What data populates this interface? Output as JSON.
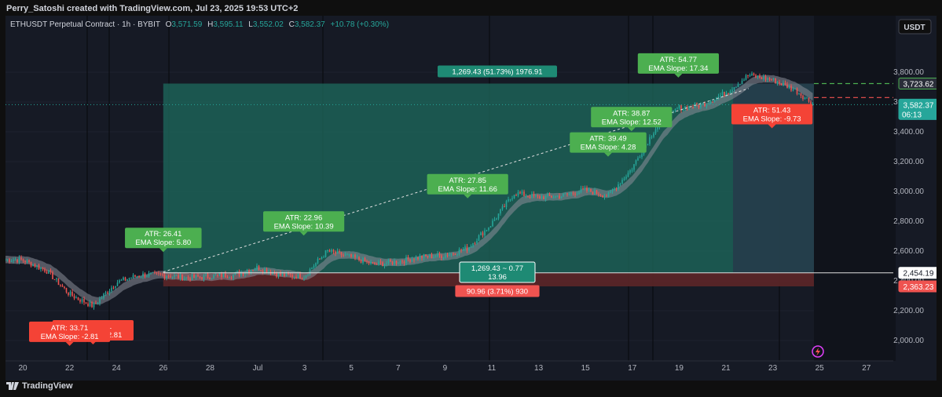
{
  "header": {
    "text": "Perry_Satoshi created with TradingView.com, Jul 23, 2025 19:53 UTC+2"
  },
  "symbol_line": {
    "symbol": "ETHUSDT Perpetual Contract · 1h · BYBIT",
    "o_label": "O",
    "o": "3,571.59",
    "h_label": "H",
    "h": "3,595.11",
    "l_label": "L",
    "l": "3,552.02",
    "c_label": "C",
    "c": "3,582.37",
    "change": "+10.78 (+0.30%)"
  },
  "currency_button": "USDT",
  "footer": {
    "brand": "TradingView"
  },
  "colors": {
    "up": "#26a69a",
    "down": "#ef5350",
    "green_label": "#4caf50",
    "red_label": "#f44336",
    "teal_box": "#1e6b5e",
    "red_box": "#5c2628",
    "bg": "#161a25"
  },
  "chart_data": {
    "type": "candlestick",
    "title": "ETHUSDT Perpetual Contract · 1h · BYBIT",
    "y_ticks": [
      "3,800.00",
      "3,600.00",
      "3,400.00",
      "3,200.00",
      "3,000.00",
      "2,800.00",
      "2,600.00",
      "2,400.00",
      "2,200.00",
      "2,000.00"
    ],
    "y_tick_values": [
      3800,
      3600,
      3400,
      3200,
      3000,
      2800,
      2600,
      2400,
      2200,
      2000
    ],
    "x_ticks": [
      "20",
      "22",
      "24",
      "26",
      "28",
      "Jul",
      "3",
      "5",
      "7",
      "9",
      "11",
      "13",
      "15",
      "17",
      "19",
      "21",
      "23",
      "25",
      "27"
    ],
    "price_badges": [
      {
        "text": "3,723.62",
        "value": 3723.62,
        "style": "green"
      },
      {
        "text": "3,582.37",
        "sub": "06:13",
        "value": 3582.37,
        "style": "teal"
      },
      {
        "text": "2,454.19",
        "value": 2454.19,
        "style": "white"
      },
      {
        "text": "2,363.23",
        "value": 2363.23,
        "style": "red"
      }
    ],
    "position": {
      "entry": 2454.19,
      "target": 3723.62,
      "stop": 2363.23,
      "target_label": "1,269.43 (51.73%) 1976.91",
      "stop_label": "90.96 (3.71%) 930",
      "center_label_1": "1,269.43 ~ 0.77",
      "center_label_2": "13.96"
    },
    "price_path": [
      [
        "Jun 19",
        2545
      ],
      [
        "Jun 20",
        2540
      ],
      [
        "Jun 21",
        2470
      ],
      [
        "Jun 22",
        2310
      ],
      [
        "Jun 23",
        2230
      ],
      [
        "Jun 24",
        2390
      ],
      [
        "Jun 25",
        2440
      ],
      [
        "Jun 26",
        2440
      ],
      [
        "Jun 27",
        2420
      ],
      [
        "Jun 28",
        2430
      ],
      [
        "Jun 29",
        2440
      ],
      [
        "Jun 30",
        2490
      ],
      [
        "Jul 1",
        2440
      ],
      [
        "Jul 2",
        2430
      ],
      [
        "Jul 3",
        2600
      ],
      [
        "Jul 4",
        2560
      ],
      [
        "Jul 5",
        2510
      ],
      [
        "Jul 6",
        2530
      ],
      [
        "Jul 7",
        2560
      ],
      [
        "Jul 8",
        2570
      ],
      [
        "Jul 9",
        2620
      ],
      [
        "Jul 10",
        2780
      ],
      [
        "Jul 11",
        2990
      ],
      [
        "Jul 12",
        2960
      ],
      [
        "Jul 13",
        2970
      ],
      [
        "Jul 14",
        3010
      ],
      [
        "Jul 15",
        2970
      ],
      [
        "Jul 16",
        3150
      ],
      [
        "Jul 17",
        3420
      ],
      [
        "Jul 18",
        3560
      ],
      [
        "Jul 19",
        3580
      ],
      [
        "Jul 20",
        3660
      ],
      [
        "Jul 21",
        3780
      ],
      [
        "Jul 22",
        3750
      ],
      [
        "Jul 23",
        3680
      ],
      [
        "Jul 23 19:00",
        3582.37
      ]
    ],
    "annotations": [
      {
        "line1": "ATR: 33.71",
        "line2": "EMA Slope: -2.81",
        "style": "red",
        "date": "Jun 23",
        "price": 2000,
        "pointer": "down"
      },
      {
        "line1": "ATR: 33.71",
        "line2": "EMA Slope: -2.81",
        "style": "red",
        "date": "Jun 22",
        "price": 1990,
        "pointer": "down"
      },
      {
        "line1": "ATR: 26.41",
        "line2": "EMA Slope: 5.80",
        "style": "green",
        "date": "Jun 26",
        "price": 2620,
        "pointer": "down"
      },
      {
        "line1": "ATR: 22.96",
        "line2": "EMA Slope: 10.39",
        "style": "green",
        "date": "Jul 2",
        "price": 2730,
        "pointer": "down"
      },
      {
        "line1": "ATR: 27.85",
        "line2": "EMA Slope: 11.66",
        "style": "green",
        "date": "Jul 9",
        "price": 2980,
        "pointer": "down"
      },
      {
        "line1": "ATR: 39.49",
        "line2": "EMA Slope: 4.28",
        "style": "green",
        "date": "Jul 15",
        "price": 3260,
        "pointer": "down"
      },
      {
        "line1": "ATR: 38.87",
        "line2": "EMA Slope: 12.52",
        "style": "green",
        "date": "Jul 16",
        "price": 3430,
        "pointer": "down"
      },
      {
        "line1": "ATR: 54.77",
        "line2": "EMA Slope: 17.34",
        "style": "green",
        "date": "Jul 18",
        "price": 3790,
        "pointer": "down"
      },
      {
        "line1": "ATR: 51.43",
        "line2": "EMA Slope: -9.73",
        "style": "red",
        "date": "Jul 22",
        "price": 3450,
        "pointer": "down"
      }
    ],
    "trend_line": {
      "from": [
        "Jun 26",
        2460
      ],
      "to": [
        "Jul 21",
        3690
      ]
    },
    "ylim": [
      1890,
      3950
    ],
    "grid": true
  }
}
